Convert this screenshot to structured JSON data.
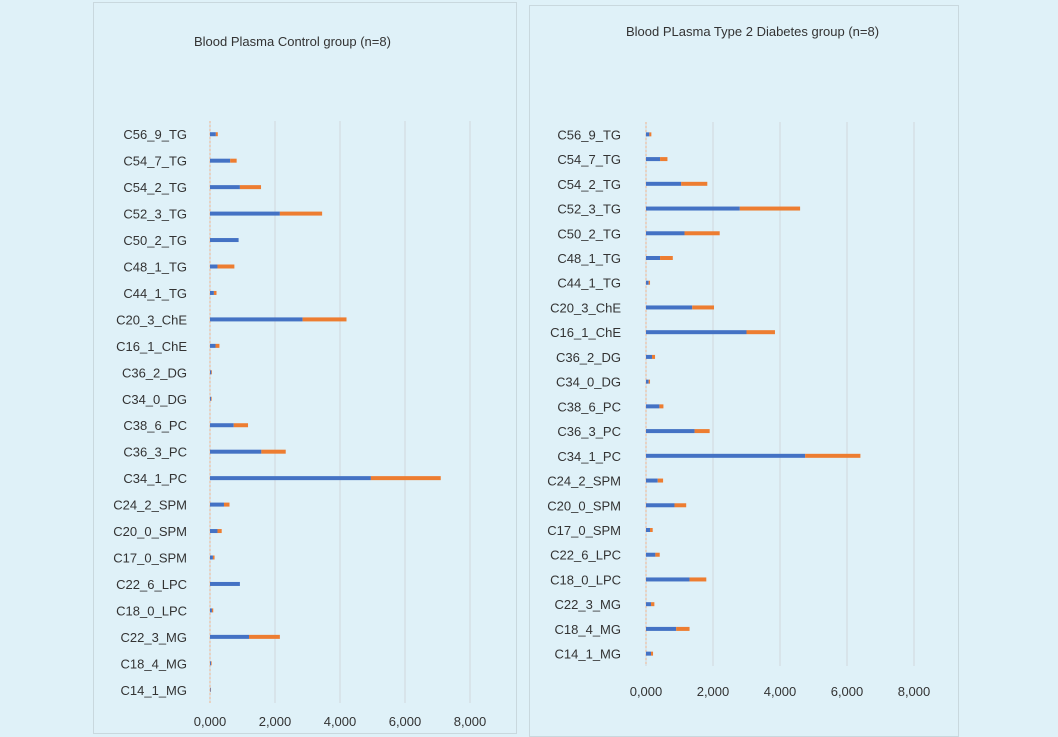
{
  "colors": {
    "series_a": "#4472c4",
    "series_b": "#ed7d31",
    "grid": "#d0d8dc",
    "text": "#333333"
  },
  "chart_data": [
    {
      "type": "bar",
      "orientation": "horizontal",
      "stacked": true,
      "title": "Blood Plasma Control group (n=8)",
      "xlim": [
        0,
        8000
      ],
      "xticks": [
        "0,000",
        "2,000",
        "4,000",
        "6,000",
        "8,000"
      ],
      "categories": [
        "C56_9_TG",
        "C54_7_TG",
        "C54_2_TG",
        "C52_3_TG",
        "C50_2_TG",
        "C48_1_TG",
        "C44_1_TG",
        "C20_3_ChE",
        "C16_1_ChE",
        "C36_2_DG",
        "C34_0_DG",
        "C38_6_PC",
        "C36_3_PC",
        "C34_1_PC",
        "C24_2_SPM",
        "C20_0_SPM",
        "C17_0_SPM",
        "C22_6_LPC",
        "C18_0_LPC",
        "C22_3_MG",
        "C18_4_MG",
        "C14_1_MG"
      ],
      "series": [
        {
          "values": [
            180,
            620,
            920,
            2150,
            880,
            230,
            120,
            2850,
            170,
            40,
            30,
            730,
            1580,
            4950,
            430,
            230,
            90,
            920,
            60,
            1200,
            30,
            20
          ]
        },
        {
          "values": [
            60,
            200,
            650,
            1300,
            0,
            520,
            80,
            1350,
            120,
            20,
            20,
            440,
            750,
            2150,
            170,
            130,
            50,
            0,
            40,
            950,
            20,
            10
          ]
        }
      ]
    },
    {
      "type": "bar",
      "orientation": "horizontal",
      "stacked": true,
      "title": "Blood PLasma Type 2 Diabetes group (n=8)",
      "xlim": [
        0,
        8000
      ],
      "xticks": [
        "0,000",
        "2,000",
        "4,000",
        "6,000",
        "8,000"
      ],
      "categories": [
        "C56_9_TG",
        "C54_7_TG",
        "C54_2_TG",
        "C52_3_TG",
        "C50_2_TG",
        "C48_1_TG",
        "C44_1_TG",
        "C20_3_ChE",
        "C16_1_ChE",
        "C36_2_DG",
        "C34_0_DG",
        "C38_6_PC",
        "C36_3_PC",
        "C34_1_PC",
        "C24_2_SPM",
        "C20_0_SPM",
        "C17_0_SPM",
        "C22_6_LPC",
        "C18_0_LPC",
        "C22_3_MG",
        "C18_4_MG",
        "C14_1_MG"
      ],
      "series": [
        {
          "values": [
            100,
            420,
            1050,
            2800,
            1150,
            420,
            80,
            1380,
            3000,
            180,
            80,
            400,
            1450,
            4750,
            350,
            850,
            120,
            280,
            1300,
            150,
            900,
            150
          ]
        },
        {
          "values": [
            60,
            220,
            780,
            1800,
            1050,
            380,
            40,
            650,
            850,
            90,
            40,
            120,
            450,
            1650,
            160,
            350,
            80,
            130,
            500,
            100,
            400,
            60
          ]
        }
      ]
    }
  ]
}
